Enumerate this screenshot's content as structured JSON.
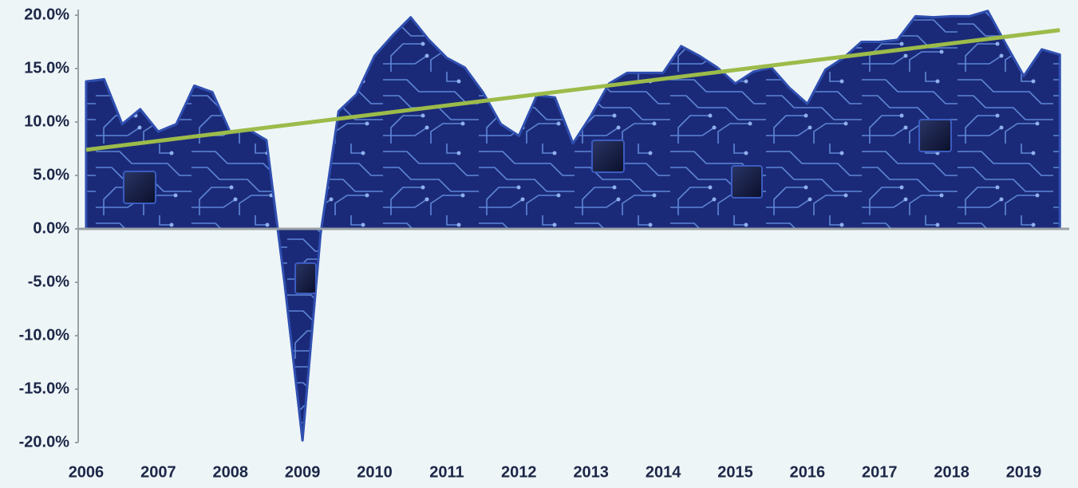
{
  "chart_data": {
    "type": "area",
    "x": [
      2006,
      2006.25,
      2006.5,
      2006.75,
      2007,
      2007.25,
      2007.5,
      2007.75,
      2008,
      2008.25,
      2008.5,
      2008.75,
      2009,
      2009.25,
      2009.5,
      2009.75,
      2010,
      2010.25,
      2010.5,
      2010.75,
      2011,
      2011.25,
      2011.5,
      2011.75,
      2012,
      2012.25,
      2012.5,
      2012.75,
      2013,
      2013.25,
      2013.5,
      2013.75,
      2014,
      2014.25,
      2014.5,
      2014.75,
      2015,
      2015.25,
      2015.5,
      2015.75,
      2016,
      2016.25,
      2016.5,
      2016.75,
      2017,
      2017.25,
      2017.5,
      2017.75,
      2018,
      2018.25,
      2018.5,
      2018.75,
      2019,
      2019.25,
      2019.5
    ],
    "series": [
      {
        "color": "#1b2a78",
        "values": [
          13.8,
          14.0,
          9.8,
          11.2,
          9.1,
          9.8,
          13.4,
          12.8,
          9.0,
          9.3,
          8.3,
          -5.0,
          -19.8,
          -0.5,
          11.0,
          12.6,
          16.2,
          18.1,
          19.8,
          17.7,
          16.0,
          15.1,
          12.8,
          9.8,
          8.7,
          12.5,
          12.3,
          8.0,
          10.6,
          13.6,
          14.6,
          14.6,
          14.6,
          17.1,
          16.2,
          15.1,
          13.6,
          14.7,
          15.1,
          13.2,
          11.7,
          14.9,
          16.0,
          17.5,
          17.5,
          17.7,
          19.9,
          19.8,
          19.9,
          19.9,
          20.4,
          17.3,
          14.3,
          16.8,
          16.3
        ]
      },
      {
        "color": "#9cbb4a",
        "x": [
          2006,
          2019.5
        ],
        "values": [
          7.4,
          18.6
        ]
      }
    ],
    "xlim": [
      2005.89,
      2019.63
    ],
    "xticks": [
      2006,
      2007,
      2008,
      2009,
      2010,
      2011,
      2012,
      2013,
      2014,
      2015,
      2016,
      2017,
      2018,
      2019
    ],
    "ylim": [
      -20,
      20
    ],
    "yticks": [
      {
        "value": 20,
        "label": "20.0%"
      },
      {
        "value": 15,
        "label": "15.0%"
      },
      {
        "value": 10,
        "label": "10.0%"
      },
      {
        "value": 5,
        "label": "5.0%"
      },
      {
        "value": 0,
        "label": "0.0%"
      },
      {
        "value": -5,
        "label": "-5.0%"
      },
      {
        "value": -10,
        "label": "-10.0%"
      },
      {
        "value": -15,
        "label": "-15.0%"
      },
      {
        "value": -20,
        "label": "-20.0%"
      }
    ]
  }
}
